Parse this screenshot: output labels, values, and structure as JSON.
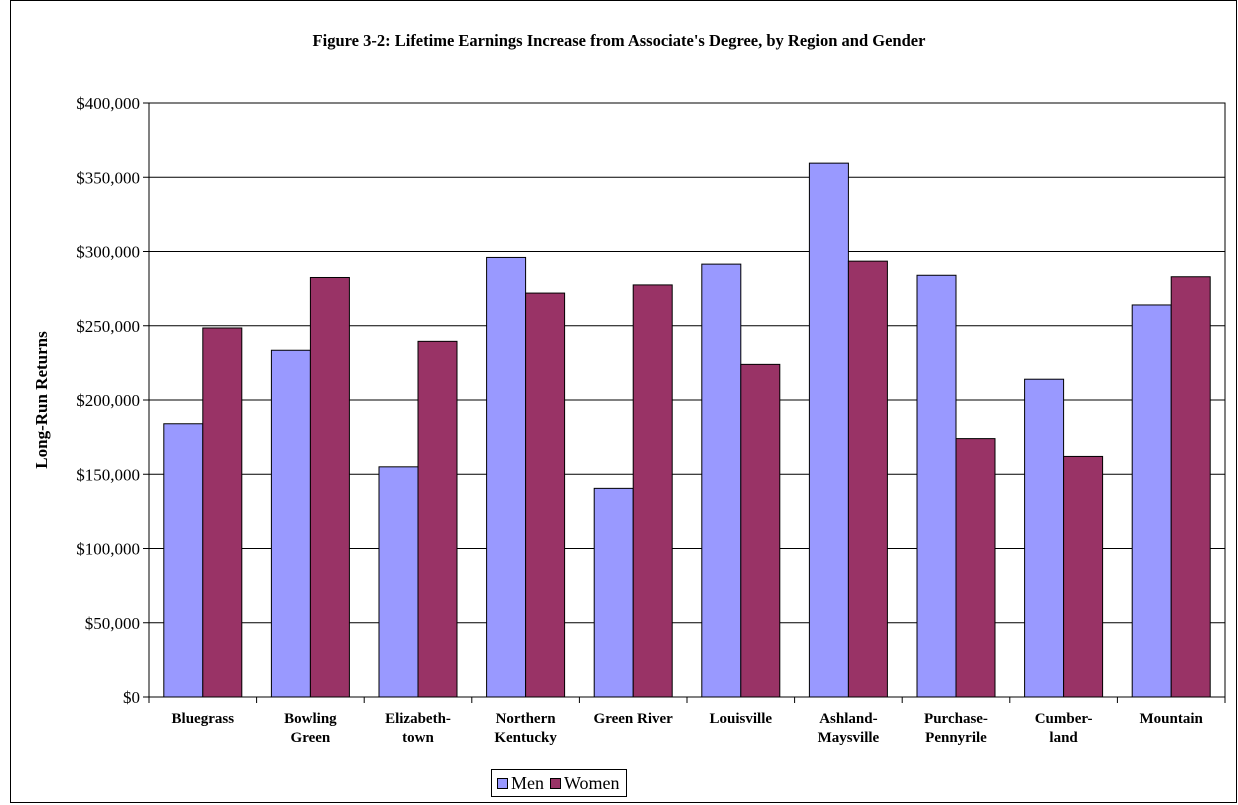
{
  "chart_data": {
    "type": "bar",
    "title": "Figure 3-2: Lifetime Earnings Increase from Associate's Degree, by Region and Gender",
    "xlabel": "",
    "ylabel": "Long-Run Returns",
    "ylim": [
      0,
      400000
    ],
    "yticks": [
      0,
      50000,
      100000,
      150000,
      200000,
      250000,
      300000,
      350000,
      400000
    ],
    "ytick_labels": [
      "$0",
      "$50,000",
      "$100,000",
      "$150,000",
      "$200,000",
      "$250,000",
      "$300,000",
      "$350,000",
      "$400,000"
    ],
    "grid": true,
    "legend_position": "bottom",
    "categories": [
      [
        "Bluegrass"
      ],
      [
        "Bowling",
        "Green"
      ],
      [
        "Elizabeth-",
        "town"
      ],
      [
        "Northern",
        "Kentucky"
      ],
      [
        "Green River"
      ],
      [
        "Louisville"
      ],
      [
        "Ashland-",
        "Maysville"
      ],
      [
        "Purchase-",
        "Pennyrile"
      ],
      [
        "Cumber-",
        "land"
      ],
      [
        "Mountain"
      ]
    ],
    "series": [
      {
        "name": "Men",
        "color": "#9999ff",
        "values": [
          184000,
          233500,
          155000,
          296000,
          140500,
          291500,
          359500,
          284000,
          214000,
          264000
        ]
      },
      {
        "name": "Women",
        "color": "#993366",
        "values": [
          248500,
          282500,
          239500,
          272000,
          277500,
          224000,
          293500,
          174000,
          162000,
          283000
        ]
      }
    ]
  }
}
